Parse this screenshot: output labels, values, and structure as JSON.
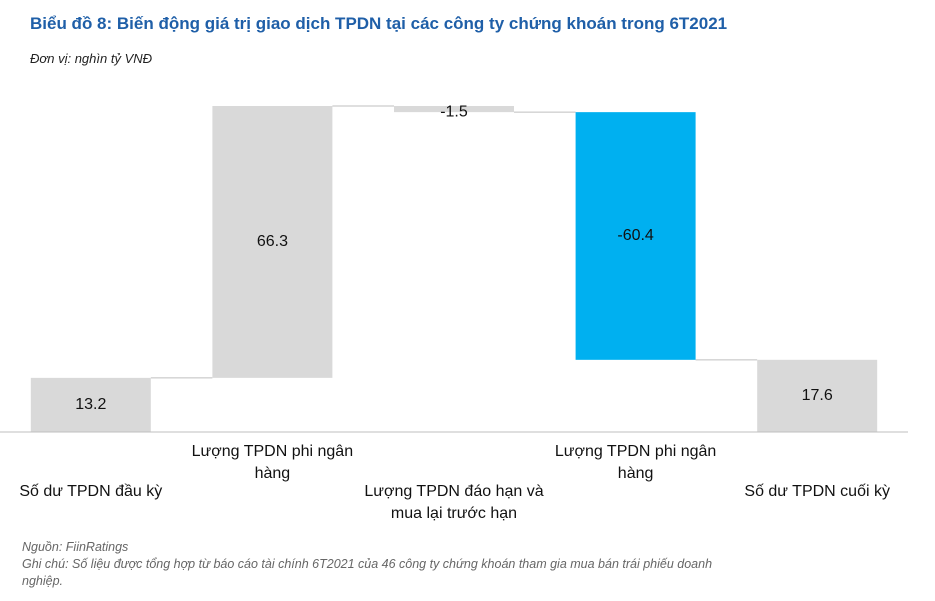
{
  "chart_data": {
    "type": "waterfall",
    "title": "Biểu đồ 8: Biến động giá trị giao dịch TPDN tại các công ty chứng khoán trong 6T2021",
    "subtitle": "Đơn vị: nghìn tỷ VNĐ",
    "categories": [
      "Số dư TPDN đầu kỳ",
      "Lượng TPDN phi ngân hàng",
      "Lượng TPDN đáo hạn và mua lại trước hạn",
      "Lượng TPDN phi ngân hàng",
      "Số dư TPDN cuối kỳ"
    ],
    "values": [
      13.2,
      66.3,
      -1.5,
      -60.4,
      17.6
    ],
    "colors": [
      "#d9d9d9",
      "#d9d9d9",
      "#d9d9d9",
      "#00b0f0",
      "#d9d9d9"
    ],
    "source": "Nguồn: FiinRatings",
    "note": "Ghi chú: Số liệu được tổng hợp từ báo cáo tài chính 6T2021 của 46 công ty chứng khoán tham gia mua bán trái phiếu doanh nghiệp."
  }
}
